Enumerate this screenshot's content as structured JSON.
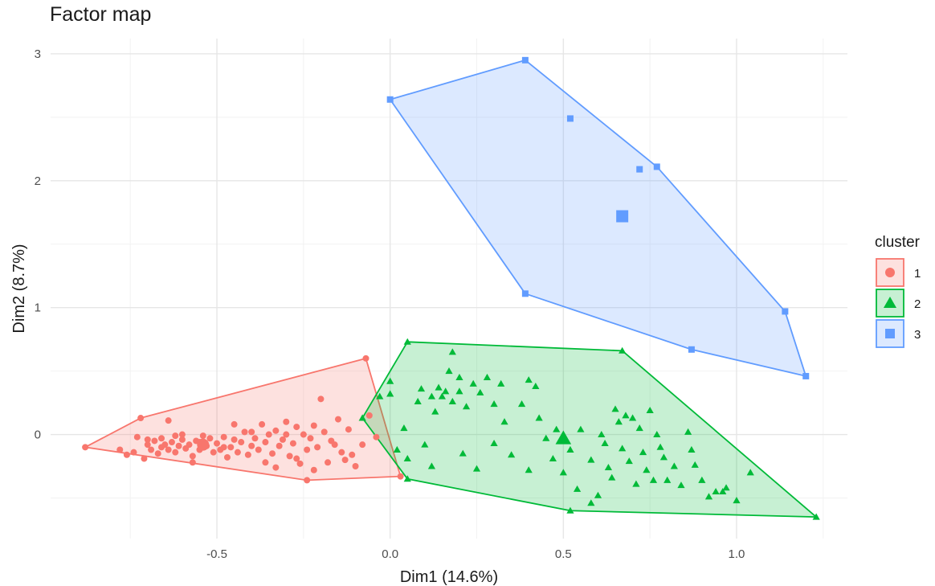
{
  "chart_data": {
    "type": "scatter",
    "title": "Factor map",
    "xlabel": "Dim1 (14.6%)",
    "ylabel": "Dim2 (8.7%)",
    "xlim": [
      -0.98,
      1.32
    ],
    "ylim": [
      -0.82,
      3.12
    ],
    "x_ticks": [
      -0.5,
      0.0,
      0.5,
      1.0
    ],
    "x_tick_labels": [
      "-0.5",
      "0.0",
      "0.5",
      "1.0"
    ],
    "y_ticks": [
      0,
      1,
      2,
      3
    ],
    "y_tick_labels": [
      "0",
      "1",
      "2",
      "3"
    ],
    "grid": true,
    "legend": {
      "title": "cluster",
      "position": "right"
    },
    "series": [
      {
        "name": "1",
        "color": "#F8766D",
        "marker": "circle",
        "centroid": [
          -0.54,
          -0.08
        ],
        "hull": [
          [
            -0.88,
            -0.1
          ],
          [
            -0.72,
            0.13
          ],
          [
            -0.07,
            0.6
          ],
          [
            0.03,
            -0.33
          ],
          [
            -0.24,
            -0.36
          ]
        ],
        "points": [
          [
            -0.88,
            -0.1
          ],
          [
            -0.72,
            0.13
          ],
          [
            -0.07,
            0.6
          ],
          [
            0.03,
            -0.33
          ],
          [
            -0.24,
            -0.36
          ],
          [
            -0.78,
            -0.12
          ],
          [
            -0.76,
            -0.16
          ],
          [
            -0.74,
            -0.14
          ],
          [
            -0.73,
            -0.02
          ],
          [
            -0.71,
            -0.19
          ],
          [
            -0.7,
            -0.08
          ],
          [
            -0.69,
            -0.12
          ],
          [
            -0.68,
            -0.05
          ],
          [
            -0.67,
            -0.15
          ],
          [
            -0.66,
            -0.03
          ],
          [
            -0.66,
            -0.1
          ],
          [
            -0.65,
            -0.08
          ],
          [
            -0.64,
            -0.12
          ],
          [
            -0.63,
            -0.06
          ],
          [
            -0.62,
            -0.14
          ],
          [
            -0.61,
            -0.09
          ],
          [
            -0.6,
            -0.04
          ],
          [
            -0.6,
            0.0
          ],
          [
            -0.59,
            -0.11
          ],
          [
            -0.58,
            -0.08
          ],
          [
            -0.57,
            -0.17
          ],
          [
            -0.56,
            -0.05
          ],
          [
            -0.55,
            -0.12
          ],
          [
            -0.54,
            -0.01
          ],
          [
            -0.53,
            -0.09
          ],
          [
            -0.52,
            -0.03
          ],
          [
            -0.51,
            -0.14
          ],
          [
            -0.5,
            -0.07
          ],
          [
            -0.49,
            -0.12
          ],
          [
            -0.48,
            -0.02
          ],
          [
            -0.47,
            -0.18
          ],
          [
            -0.46,
            -0.1
          ],
          [
            -0.45,
            -0.04
          ],
          [
            -0.44,
            -0.14
          ],
          [
            -0.43,
            -0.06
          ],
          [
            -0.42,
            0.02
          ],
          [
            -0.41,
            -0.16
          ],
          [
            -0.4,
            -0.09
          ],
          [
            -0.39,
            -0.03
          ],
          [
            -0.38,
            -0.12
          ],
          [
            -0.37,
            0.08
          ],
          [
            -0.36,
            -0.06
          ],
          [
            -0.35,
            0.0
          ],
          [
            -0.34,
            -0.15
          ],
          [
            -0.33,
            0.03
          ],
          [
            -0.32,
            -0.09
          ],
          [
            -0.31,
            -0.04
          ],
          [
            -0.3,
            0.1
          ],
          [
            -0.29,
            -0.17
          ],
          [
            -0.28,
            -0.07
          ],
          [
            -0.27,
            0.06
          ],
          [
            -0.26,
            -0.23
          ],
          [
            -0.25,
            0.0
          ],
          [
            -0.24,
            -0.12
          ],
          [
            -0.23,
            -0.03
          ],
          [
            -0.22,
            0.07
          ],
          [
            -0.21,
            -0.1
          ],
          [
            -0.2,
            0.28
          ],
          [
            -0.19,
            0.02
          ],
          [
            -0.18,
            -0.22
          ],
          [
            -0.17,
            -0.05
          ],
          [
            -0.15,
            0.12
          ],
          [
            -0.14,
            -0.14
          ],
          [
            -0.12,
            0.04
          ],
          [
            -0.1,
            -0.25
          ],
          [
            -0.08,
            -0.08
          ],
          [
            -0.06,
            0.15
          ],
          [
            -0.04,
            -0.02
          ],
          [
            -0.64,
            0.11
          ],
          [
            -0.57,
            -0.22
          ],
          [
            -0.45,
            0.08
          ],
          [
            -0.33,
            -0.26
          ],
          [
            -0.22,
            -0.28
          ],
          [
            -0.13,
            -0.2
          ],
          [
            -0.7,
            -0.04
          ],
          [
            -0.62,
            -0.01
          ],
          [
            -0.55,
            -0.06
          ],
          [
            -0.48,
            -0.1
          ],
          [
            -0.4,
            0.02
          ],
          [
            -0.36,
            -0.22
          ],
          [
            -0.3,
            0.0
          ],
          [
            -0.27,
            -0.19
          ],
          [
            -0.16,
            -0.08
          ],
          [
            -0.11,
            -0.16
          ]
        ]
      },
      {
        "name": "2",
        "color": "#00BA38",
        "marker": "triangle",
        "centroid": [
          0.5,
          -0.03
        ],
        "hull": [
          [
            -0.08,
            0.13
          ],
          [
            0.05,
            0.73
          ],
          [
            0.67,
            0.66
          ],
          [
            1.23,
            -0.65
          ],
          [
            0.52,
            -0.6
          ],
          [
            0.05,
            -0.35
          ]
        ],
        "points": [
          [
            -0.08,
            0.13
          ],
          [
            0.05,
            0.73
          ],
          [
            0.67,
            0.66
          ],
          [
            1.23,
            -0.65
          ],
          [
            0.52,
            -0.6
          ],
          [
            0.05,
            -0.35
          ],
          [
            -0.03,
            0.3
          ],
          [
            0.0,
            0.42
          ],
          [
            0.0,
            0.32
          ],
          [
            0.02,
            -0.12
          ],
          [
            0.04,
            0.05
          ],
          [
            0.05,
            -0.19
          ],
          [
            0.08,
            0.26
          ],
          [
            0.09,
            0.36
          ],
          [
            0.1,
            -0.08
          ],
          [
            0.12,
            0.3
          ],
          [
            0.13,
            0.18
          ],
          [
            0.14,
            0.37
          ],
          [
            0.15,
            0.3
          ],
          [
            0.16,
            0.34
          ],
          [
            0.17,
            0.5
          ],
          [
            0.18,
            0.26
          ],
          [
            0.18,
            0.65
          ],
          [
            0.2,
            0.34
          ],
          [
            0.2,
            0.45
          ],
          [
            0.21,
            -0.15
          ],
          [
            0.22,
            0.22
          ],
          [
            0.24,
            0.4
          ],
          [
            0.25,
            -0.27
          ],
          [
            0.26,
            0.33
          ],
          [
            0.28,
            0.45
          ],
          [
            0.3,
            -0.07
          ],
          [
            0.32,
            0.4
          ],
          [
            0.33,
            0.1
          ],
          [
            0.35,
            -0.16
          ],
          [
            0.38,
            0.24
          ],
          [
            0.4,
            -0.28
          ],
          [
            0.42,
            0.38
          ],
          [
            0.43,
            0.13
          ],
          [
            0.45,
            -0.03
          ],
          [
            0.47,
            -0.19
          ],
          [
            0.48,
            0.04
          ],
          [
            0.5,
            -0.3
          ],
          [
            0.52,
            -0.12
          ],
          [
            0.54,
            -0.43
          ],
          [
            0.55,
            0.04
          ],
          [
            0.58,
            -0.2
          ],
          [
            0.6,
            -0.48
          ],
          [
            0.61,
            0.0
          ],
          [
            0.62,
            -0.07
          ],
          [
            0.63,
            -0.26
          ],
          [
            0.64,
            -0.34
          ],
          [
            0.65,
            0.2
          ],
          [
            0.66,
            0.1
          ],
          [
            0.67,
            -0.11
          ],
          [
            0.68,
            0.15
          ],
          [
            0.69,
            -0.21
          ],
          [
            0.7,
            0.13
          ],
          [
            0.71,
            -0.39
          ],
          [
            0.72,
            0.05
          ],
          [
            0.73,
            -0.14
          ],
          [
            0.74,
            -0.28
          ],
          [
            0.75,
            0.19
          ],
          [
            0.76,
            -0.36
          ],
          [
            0.77,
            0.0
          ],
          [
            0.78,
            -0.1
          ],
          [
            0.79,
            -0.18
          ],
          [
            0.8,
            -0.36
          ],
          [
            0.82,
            -0.25
          ],
          [
            0.84,
            -0.4
          ],
          [
            0.86,
            0.02
          ],
          [
            0.87,
            -0.12
          ],
          [
            0.88,
            -0.24
          ],
          [
            0.9,
            -0.36
          ],
          [
            0.92,
            -0.49
          ],
          [
            0.94,
            -0.45
          ],
          [
            0.96,
            -0.45
          ],
          [
            0.97,
            -0.42
          ],
          [
            1.0,
            -0.52
          ],
          [
            1.04,
            -0.3
          ],
          [
            0.58,
            -0.54
          ],
          [
            0.4,
            0.43
          ],
          [
            0.12,
            -0.25
          ],
          [
            0.3,
            0.24
          ]
        ]
      },
      {
        "name": "3",
        "color": "#619CFF",
        "marker": "square",
        "centroid": [
          0.67,
          1.72
        ],
        "hull": [
          [
            0.0,
            2.64
          ],
          [
            0.39,
            2.95
          ],
          [
            0.77,
            2.11
          ],
          [
            1.14,
            0.97
          ],
          [
            1.2,
            0.46
          ],
          [
            0.87,
            0.67
          ],
          [
            0.39,
            1.11
          ]
        ],
        "points": [
          [
            0.0,
            2.64
          ],
          [
            0.39,
            2.95
          ],
          [
            0.52,
            2.49
          ],
          [
            0.72,
            2.09
          ],
          [
            0.77,
            2.11
          ],
          [
            0.39,
            1.11
          ],
          [
            1.14,
            0.97
          ],
          [
            0.87,
            0.67
          ],
          [
            1.2,
            0.46
          ]
        ]
      }
    ]
  }
}
